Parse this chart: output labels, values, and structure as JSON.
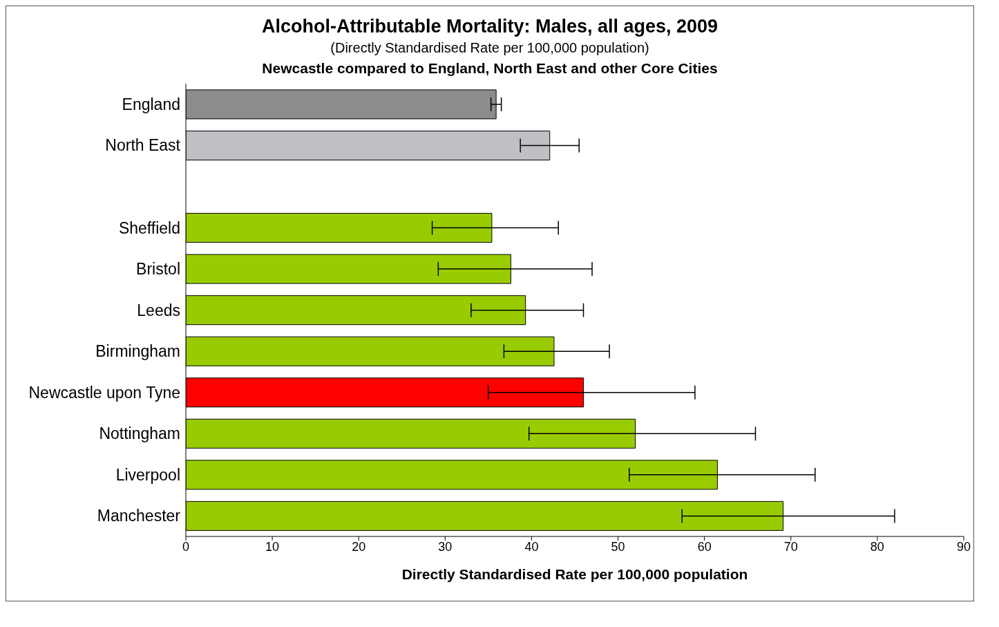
{
  "chart_data": {
    "type": "bar",
    "orientation": "horizontal",
    "title": "Alcohol-Attributable Mortality: Males, all ages, 2009",
    "subtitle": "(Directly Standardised Rate per 100,000 population)",
    "annotations": [
      "Newcastle compared to England, North East and other Core Cities"
    ],
    "categories": [
      "England",
      "North East",
      null,
      "Sheffield",
      "Bristol",
      "Leeds",
      "Birmingham",
      "Newcastle upon Tyne",
      "Nottingham",
      "Liverpool",
      "Manchester"
    ],
    "values": [
      35.9,
      42.1,
      null,
      35.4,
      37.6,
      39.3,
      42.6,
      46.0,
      52.0,
      61.5,
      69.1
    ],
    "errors": [
      [
        35.3,
        36.5
      ],
      [
        38.7,
        45.5
      ],
      null,
      [
        28.5,
        43.1
      ],
      [
        29.2,
        47.0
      ],
      [
        33.0,
        46.0
      ],
      [
        36.8,
        49.0
      ],
      [
        35.0,
        58.9
      ],
      [
        39.7,
        65.9
      ],
      [
        51.3,
        72.8
      ],
      [
        57.4,
        82.0
      ]
    ],
    "colors": [
      "#8c8c8c",
      "#c0c0c4",
      null,
      "#99cc00",
      "#99cc00",
      "#99cc00",
      "#99cc00",
      "#ff0000",
      "#99cc00",
      "#99cc00",
      "#99cc00"
    ],
    "xlabel": "Directly Standardised Rate per 100,000 population",
    "xlim": [
      0,
      90
    ],
    "xticks": [
      0,
      10,
      20,
      30,
      40,
      50,
      60,
      70,
      80,
      90
    ],
    "grid": false
  }
}
